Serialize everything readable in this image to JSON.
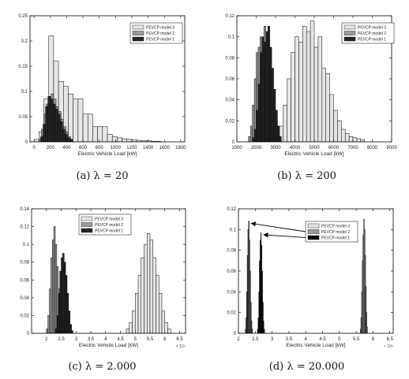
{
  "figure": {
    "captions": [
      "(a) λ = 20",
      "(b) λ = 200",
      "(c) λ = 2.000",
      "(d) λ = 20.000"
    ]
  },
  "chart_data": [
    {
      "type": "histogram",
      "panel": "a",
      "xlabel": "Electric Vehicle Load [kW]",
      "ylabel": "",
      "xlim": [
        -50,
        1850
      ],
      "ylim": [
        0,
        0.25
      ],
      "xticks": [
        0,
        200,
        400,
        600,
        800,
        1000,
        1200,
        1400,
        1600,
        1800
      ],
      "xtick_labels": [
        "0",
        "200",
        "400",
        "600",
        "800",
        "1000",
        "1200",
        "1400",
        "1600",
        "1800"
      ],
      "yticks": [
        0,
        0.05,
        0.1,
        0.15,
        0.2,
        0.25
      ],
      "ytick_labels": [
        "0",
        "0.05",
        "0.1",
        "0.15",
        "0.2",
        "0.25"
      ],
      "x_multiplier": "",
      "legend": {
        "position": "top-right",
        "entries": [
          "PEVCP model 3",
          "PEVCP model 2",
          "PEVCP model 1"
        ]
      },
      "series": [
        {
          "name": "PEVCP model 3",
          "color": "#e6e6e6",
          "bin_edges": [
            0,
            60,
            120,
            180,
            240,
            300,
            360,
            420,
            480,
            540,
            600,
            660,
            720,
            780,
            840,
            900,
            960,
            1020,
            1080,
            1140,
            1200,
            1260,
            1320,
            1380,
            1440,
            1500,
            1560
          ],
          "values": [
            0.005,
            0.02,
            0.085,
            0.21,
            0.16,
            0.12,
            0.11,
            0.095,
            0.085,
            0.085,
            0.055,
            0.055,
            0.03,
            0.03,
            0.03,
            0.015,
            0.01,
            0.008,
            0.006,
            0.005,
            0.004,
            0.003,
            0.002,
            0.002,
            0.001,
            0.001
          ]
        },
        {
          "name": "PEVCP model 2",
          "color": "#9a9a9a",
          "bin_edges": [
            60,
            90,
            120,
            150,
            180,
            210,
            240,
            270,
            300,
            330,
            360,
            390,
            420,
            450,
            480
          ],
          "values": [
            0.005,
            0.025,
            0.055,
            0.075,
            0.09,
            0.095,
            0.085,
            0.07,
            0.06,
            0.045,
            0.03,
            0.02,
            0.01,
            0.005
          ]
        },
        {
          "name": "PEVCP model 1",
          "color": "#262626",
          "bin_edges": [
            80,
            110,
            140,
            170,
            200,
            230,
            260,
            290,
            320,
            350,
            380,
            410,
            440,
            470
          ],
          "values": [
            0.01,
            0.035,
            0.07,
            0.09,
            0.085,
            0.075,
            0.065,
            0.055,
            0.04,
            0.025,
            0.015,
            0.008,
            0.004
          ]
        }
      ]
    },
    {
      "type": "histogram",
      "panel": "b",
      "xlabel": "Electric Vehicle Load [kW]",
      "ylabel": "",
      "xlim": [
        1000,
        9000
      ],
      "ylim": [
        0,
        0.12
      ],
      "xticks": [
        1000,
        2000,
        3000,
        4000,
        5000,
        6000,
        7000,
        8000,
        9000
      ],
      "xtick_labels": [
        "1000",
        "2000",
        "3000",
        "4000",
        "5000",
        "6000",
        "7000",
        "8000",
        "9000"
      ],
      "yticks": [
        0,
        0.02,
        0.04,
        0.06,
        0.08,
        0.1,
        0.12
      ],
      "ytick_labels": [
        "0",
        "0.02",
        "0.04",
        "0.06",
        "0.08",
        "0.1",
        "0.12"
      ],
      "x_multiplier": "",
      "legend": {
        "position": "top-right",
        "entries": [
          "PEVCP model 3",
          "PEVCP model 2",
          "PEVCP model 1"
        ]
      },
      "series": [
        {
          "name": "PEVCP model 3",
          "color": "#e6e6e6",
          "bin_edges": [
            3000,
            3200,
            3400,
            3600,
            3800,
            4000,
            4200,
            4400,
            4600,
            4800,
            5000,
            5200,
            5400,
            5600,
            5800,
            6000,
            6200,
            6400,
            6600,
            6800,
            7000,
            7200,
            7400,
            7600
          ],
          "values": [
            0.004,
            0.015,
            0.035,
            0.06,
            0.085,
            0.1,
            0.095,
            0.11,
            0.105,
            0.115,
            0.09,
            0.1,
            0.07,
            0.065,
            0.045,
            0.03,
            0.02,
            0.012,
            0.008,
            0.005,
            0.004,
            0.003,
            0.002
          ]
        },
        {
          "name": "PEVCP model 2",
          "color": "#9a9a9a",
          "bin_edges": [
            1600,
            1700,
            1800,
            1900,
            2000,
            2100,
            2200,
            2300,
            2400,
            2500,
            2600,
            2700,
            2800,
            2900,
            3000,
            3100,
            3200
          ],
          "values": [
            0.005,
            0.015,
            0.035,
            0.06,
            0.085,
            0.09,
            0.1,
            0.095,
            0.11,
            0.075,
            0.06,
            0.045,
            0.03,
            0.015,
            0.008,
            0.003
          ]
        },
        {
          "name": "PEVCP model 1",
          "color": "#262626",
          "bin_edges": [
            1800,
            1900,
            2000,
            2100,
            2200,
            2300,
            2400,
            2500,
            2600,
            2700,
            2800,
            2900,
            3000,
            3100,
            3200,
            3300
          ],
          "values": [
            0.004,
            0.012,
            0.03,
            0.055,
            0.085,
            0.1,
            0.095,
            0.105,
            0.11,
            0.09,
            0.07,
            0.05,
            0.03,
            0.015,
            0.005
          ]
        }
      ]
    },
    {
      "type": "histogram",
      "panel": "c",
      "xlabel": "Electric Vehicle Load [kW]",
      "ylabel": "",
      "xlim": [
        1.5,
        6.7
      ],
      "ylim": [
        0,
        0.14
      ],
      "xticks": [
        2,
        2.5,
        3,
        3.5,
        4,
        4.5,
        5,
        5.5,
        6,
        6.5
      ],
      "xtick_labels": [
        "2",
        "2.5",
        "3",
        "3.5",
        "4",
        "4.5",
        "5",
        "5.5",
        "6",
        "6.5"
      ],
      "yticks": [
        0,
        0.02,
        0.04,
        0.06,
        0.08,
        0.1,
        0.12,
        0.14
      ],
      "ytick_labels": [
        "0",
        "0.02",
        "0.04",
        "0.06",
        "0.08",
        "0.1",
        "0.12",
        "0.14"
      ],
      "x_multiplier": "× 10⁴",
      "legend": {
        "position": "top-center",
        "entries": [
          "PEVCP model 3",
          "PEVCP model 2",
          "PEVCP model 1"
        ]
      },
      "series": [
        {
          "name": "PEVCP model 3",
          "color": "#e6e6e6",
          "bin_edges": [
            4.7,
            4.8,
            4.9,
            5.0,
            5.1,
            5.2,
            5.3,
            5.4,
            5.5,
            5.6,
            5.7,
            5.8,
            5.9,
            6.0,
            6.1,
            6.2
          ],
          "values": [
            0.005,
            0.012,
            0.025,
            0.045,
            0.065,
            0.085,
            0.1,
            0.112,
            0.105,
            0.085,
            0.065,
            0.045,
            0.025,
            0.012,
            0.005
          ]
        },
        {
          "name": "PEVCP model 2",
          "color": "#9a9a9a",
          "bin_edges": [
            2.0,
            2.05,
            2.1,
            2.15,
            2.2,
            2.25,
            2.3,
            2.35,
            2.4,
            2.45,
            2.5,
            2.55,
            2.6
          ],
          "values": [
            0.005,
            0.02,
            0.05,
            0.085,
            0.105,
            0.12,
            0.1,
            0.075,
            0.05,
            0.025,
            0.01,
            0.003
          ]
        },
        {
          "name": "PEVCP model 1",
          "color": "#262626",
          "bin_edges": [
            2.3,
            2.35,
            2.4,
            2.45,
            2.5,
            2.55,
            2.6,
            2.65,
            2.7,
            2.75,
            2.8,
            2.85,
            2.9
          ],
          "values": [
            0.005,
            0.02,
            0.045,
            0.07,
            0.085,
            0.09,
            0.08,
            0.065,
            0.045,
            0.025,
            0.01,
            0.003
          ]
        }
      ]
    },
    {
      "type": "histogram",
      "panel": "d",
      "xlabel": "Electric Vehicle Load [kW]",
      "ylabel": "",
      "xlim": [
        2,
        6.6
      ],
      "ylim": [
        0,
        0.12
      ],
      "xticks": [
        2,
        2.5,
        3,
        3.5,
        4,
        4.5,
        5,
        5.5,
        6,
        6.5
      ],
      "xtick_labels": [
        "2",
        "2.5",
        "3",
        "3.5",
        "4",
        "4.5",
        "5",
        "5.5",
        "6",
        "6.5"
      ],
      "yticks": [
        0,
        0.02,
        0.04,
        0.06,
        0.08,
        0.1,
        0.12
      ],
      "ytick_labels": [
        "0",
        "0.02",
        "0.04",
        "0.06",
        "0.08",
        "0.1",
        "0.12"
      ],
      "x_multiplier": "× 10⁵",
      "legend": {
        "position": "top-center",
        "entries": [
          "PEVCP model 3",
          "PEVCP model 2",
          "PEVCP model 1"
        ]
      },
      "annotations": [
        {
          "type": "arrow",
          "from_legend_entry": "PEVCP model 2",
          "to": [
            2.33,
            0.106
          ]
        },
        {
          "type": "arrow",
          "from_legend_entry": "PEVCP model 1",
          "to": [
            2.7,
            0.095
          ]
        }
      ],
      "series": [
        {
          "name": "PEVCP model 3",
          "color": "#e6e6e6",
          "bin_edges": [
            5.62,
            5.64,
            5.66,
            5.68,
            5.7,
            5.72,
            5.74,
            5.76,
            5.78,
            5.8,
            5.82,
            5.84
          ],
          "values": [
            0.004,
            0.015,
            0.04,
            0.07,
            0.095,
            0.11,
            0.1,
            0.075,
            0.045,
            0.02,
            0.006
          ]
        },
        {
          "name": "PEVCP model 2",
          "color": "#9a9a9a",
          "bin_edges": [
            2.2,
            2.22,
            2.24,
            2.26,
            2.28,
            2.3,
            2.32,
            2.34,
            2.36,
            2.38,
            2.4,
            2.42
          ],
          "values": [
            0.004,
            0.015,
            0.04,
            0.075,
            0.1,
            0.108,
            0.09,
            0.06,
            0.03,
            0.012,
            0.004
          ]
        },
        {
          "name": "PEVCP model 1",
          "color": "#000000",
          "bin_edges": [
            2.56,
            2.58,
            2.6,
            2.62,
            2.64,
            2.66,
            2.68,
            2.7,
            2.72,
            2.74,
            2.76,
            2.78
          ],
          "values": [
            0.004,
            0.015,
            0.04,
            0.07,
            0.09,
            0.097,
            0.085,
            0.06,
            0.03,
            0.012,
            0.004
          ]
        }
      ]
    }
  ]
}
